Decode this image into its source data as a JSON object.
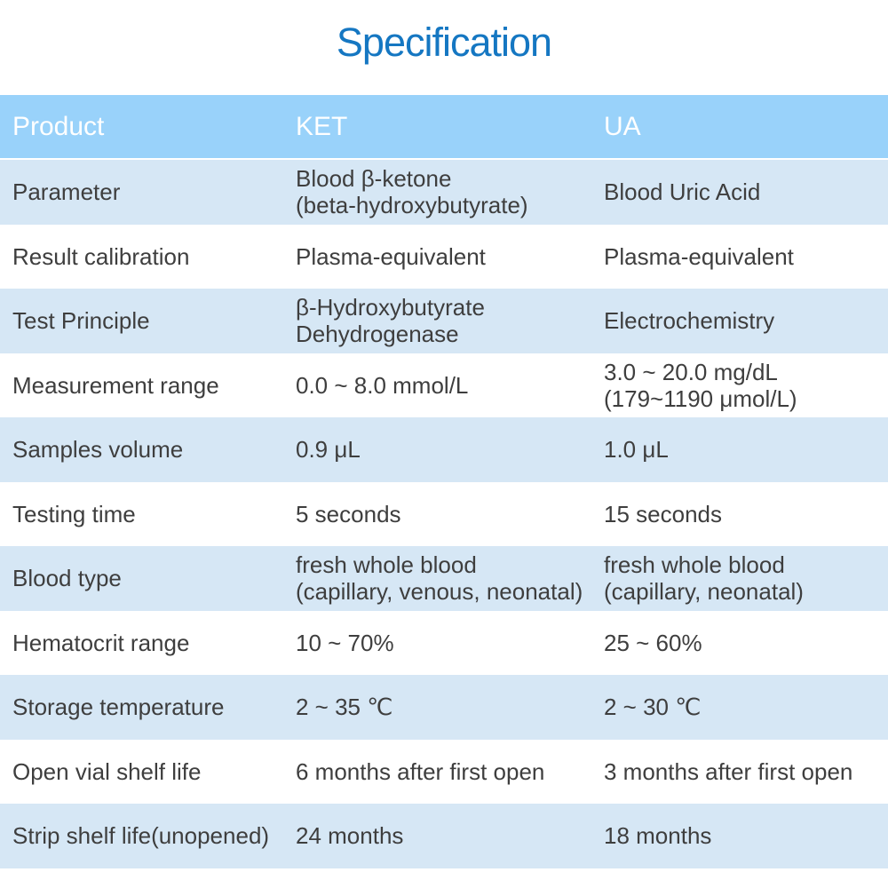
{
  "title": "Specification",
  "colors": {
    "title_blue": "#1577c2",
    "header_bg": "#99d2fa",
    "header_text": "#ffffff",
    "row_alt_bg": "#d6e7f5",
    "row_bg": "#ffffff",
    "body_text": "#3e3e3e"
  },
  "table": {
    "headers": [
      "Product",
      "KET",
      "UA"
    ],
    "rows": [
      {
        "label": "Parameter",
        "ket": "Blood β-ketone\n(beta-hydroxybutyrate)",
        "ua": "Blood Uric Acid"
      },
      {
        "label": "Result calibration",
        "ket": "Plasma-equivalent",
        "ua": "Plasma-equivalent"
      },
      {
        "label": "Test Principle",
        "ket": "β-Hydroxybutyrate\nDehydrogenase",
        "ua": "Electrochemistry"
      },
      {
        "label": "Measurement range",
        "ket": "0.0 ~ 8.0 mmol/L",
        "ua": "3.0 ~ 20.0 mg/dL\n(179~1190 μmol/L)"
      },
      {
        "label": "Samples volume",
        "ket": "0.9 μL",
        "ua": "1.0 μL"
      },
      {
        "label": "Testing time",
        "ket": "5 seconds",
        "ua": "15 seconds"
      },
      {
        "label": "Blood type",
        "ket": "fresh whole blood\n(capillary, venous, neonatal)",
        "ua": "fresh whole blood\n(capillary, neonatal)"
      },
      {
        "label": "Hematocrit range",
        "ket": "10 ~ 70%",
        "ua": "25 ~ 60%"
      },
      {
        "label": "Storage temperature",
        "ket": "2 ~ 35 ℃",
        "ua": "2 ~ 30 ℃"
      },
      {
        "label": "Open vial shelf life",
        "ket": "6 months after first open",
        "ua": "3 months after first open"
      },
      {
        "label": "Strip shelf life(unopened)",
        "ket": "24 months",
        "ua": "18 months"
      }
    ]
  }
}
